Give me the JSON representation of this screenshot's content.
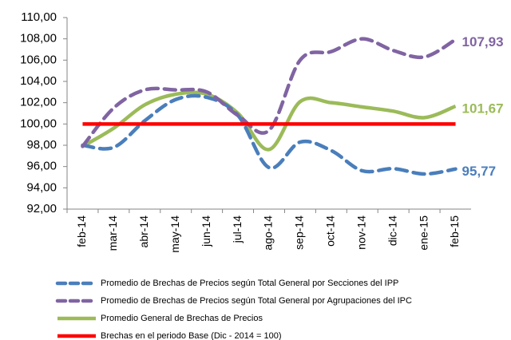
{
  "chart_data": {
    "type": "line",
    "categories": [
      "feb-14",
      "mar-14",
      "abr-14",
      "may-14",
      "jun-14",
      "jul-14",
      "ago-14",
      "sep-14",
      "oct-14",
      "nov-14",
      "dic-14",
      "ene-15",
      "feb-15"
    ],
    "series": [
      {
        "name": "Promedio de Brechas de Precios según Total General por Secciones del IPP",
        "color": "#4a7ebb",
        "dash": true,
        "values": [
          98.0,
          97.8,
          100.3,
          102.3,
          102.5,
          100.8,
          95.9,
          98.3,
          97.5,
          95.6,
          95.8,
          95.3,
          95.77
        ],
        "value_labels": [
          null,
          null,
          null,
          null,
          null,
          null,
          null,
          null,
          null,
          null,
          null,
          null,
          "95,77"
        ]
      },
      {
        "name": "Promedio de Brechas de Precios según Total General por Agrupaciones del IPC",
        "color": "#8064a2",
        "dash": true,
        "values": [
          97.9,
          101.5,
          103.2,
          103.2,
          103.0,
          100.8,
          99.4,
          106.0,
          106.8,
          108.0,
          106.9,
          106.3,
          107.93
        ],
        "value_labels": [
          null,
          null,
          null,
          null,
          null,
          null,
          null,
          null,
          null,
          null,
          null,
          null,
          "107,93"
        ]
      },
      {
        "name": "Promedio General de Brechas de Precios",
        "color": "#9bbb59",
        "dash": false,
        "values": [
          97.9,
          99.6,
          101.8,
          102.8,
          102.8,
          101.0,
          97.6,
          102.1,
          102.0,
          101.6,
          101.2,
          100.6,
          101.67
        ],
        "value_labels": [
          null,
          null,
          null,
          null,
          null,
          null,
          null,
          null,
          null,
          null,
          null,
          null,
          "101,67"
        ]
      },
      {
        "name": "Brechas en el periodo Base (Dic - 2014 = 100)",
        "color": "#ff0000",
        "dash": false,
        "values": [
          100,
          100,
          100,
          100,
          100,
          100,
          100,
          100,
          100,
          100,
          100,
          100,
          100
        ]
      }
    ],
    "ylim": [
      92,
      110
    ],
    "yticks": [
      {
        "value": 92,
        "label": "92,00"
      },
      {
        "value": 94,
        "label": "94,00"
      },
      {
        "value": 96,
        "label": "96,00"
      },
      {
        "value": 98,
        "label": "98,00"
      },
      {
        "value": 100,
        "label": "100,00"
      },
      {
        "value": 102,
        "label": "102,00"
      },
      {
        "value": 104,
        "label": "104,00"
      },
      {
        "value": 106,
        "label": "106,00"
      },
      {
        "value": 108,
        "label": "108,00"
      },
      {
        "value": 110,
        "label": "110,00"
      }
    ],
    "grid": false,
    "legend": "bottom"
  }
}
